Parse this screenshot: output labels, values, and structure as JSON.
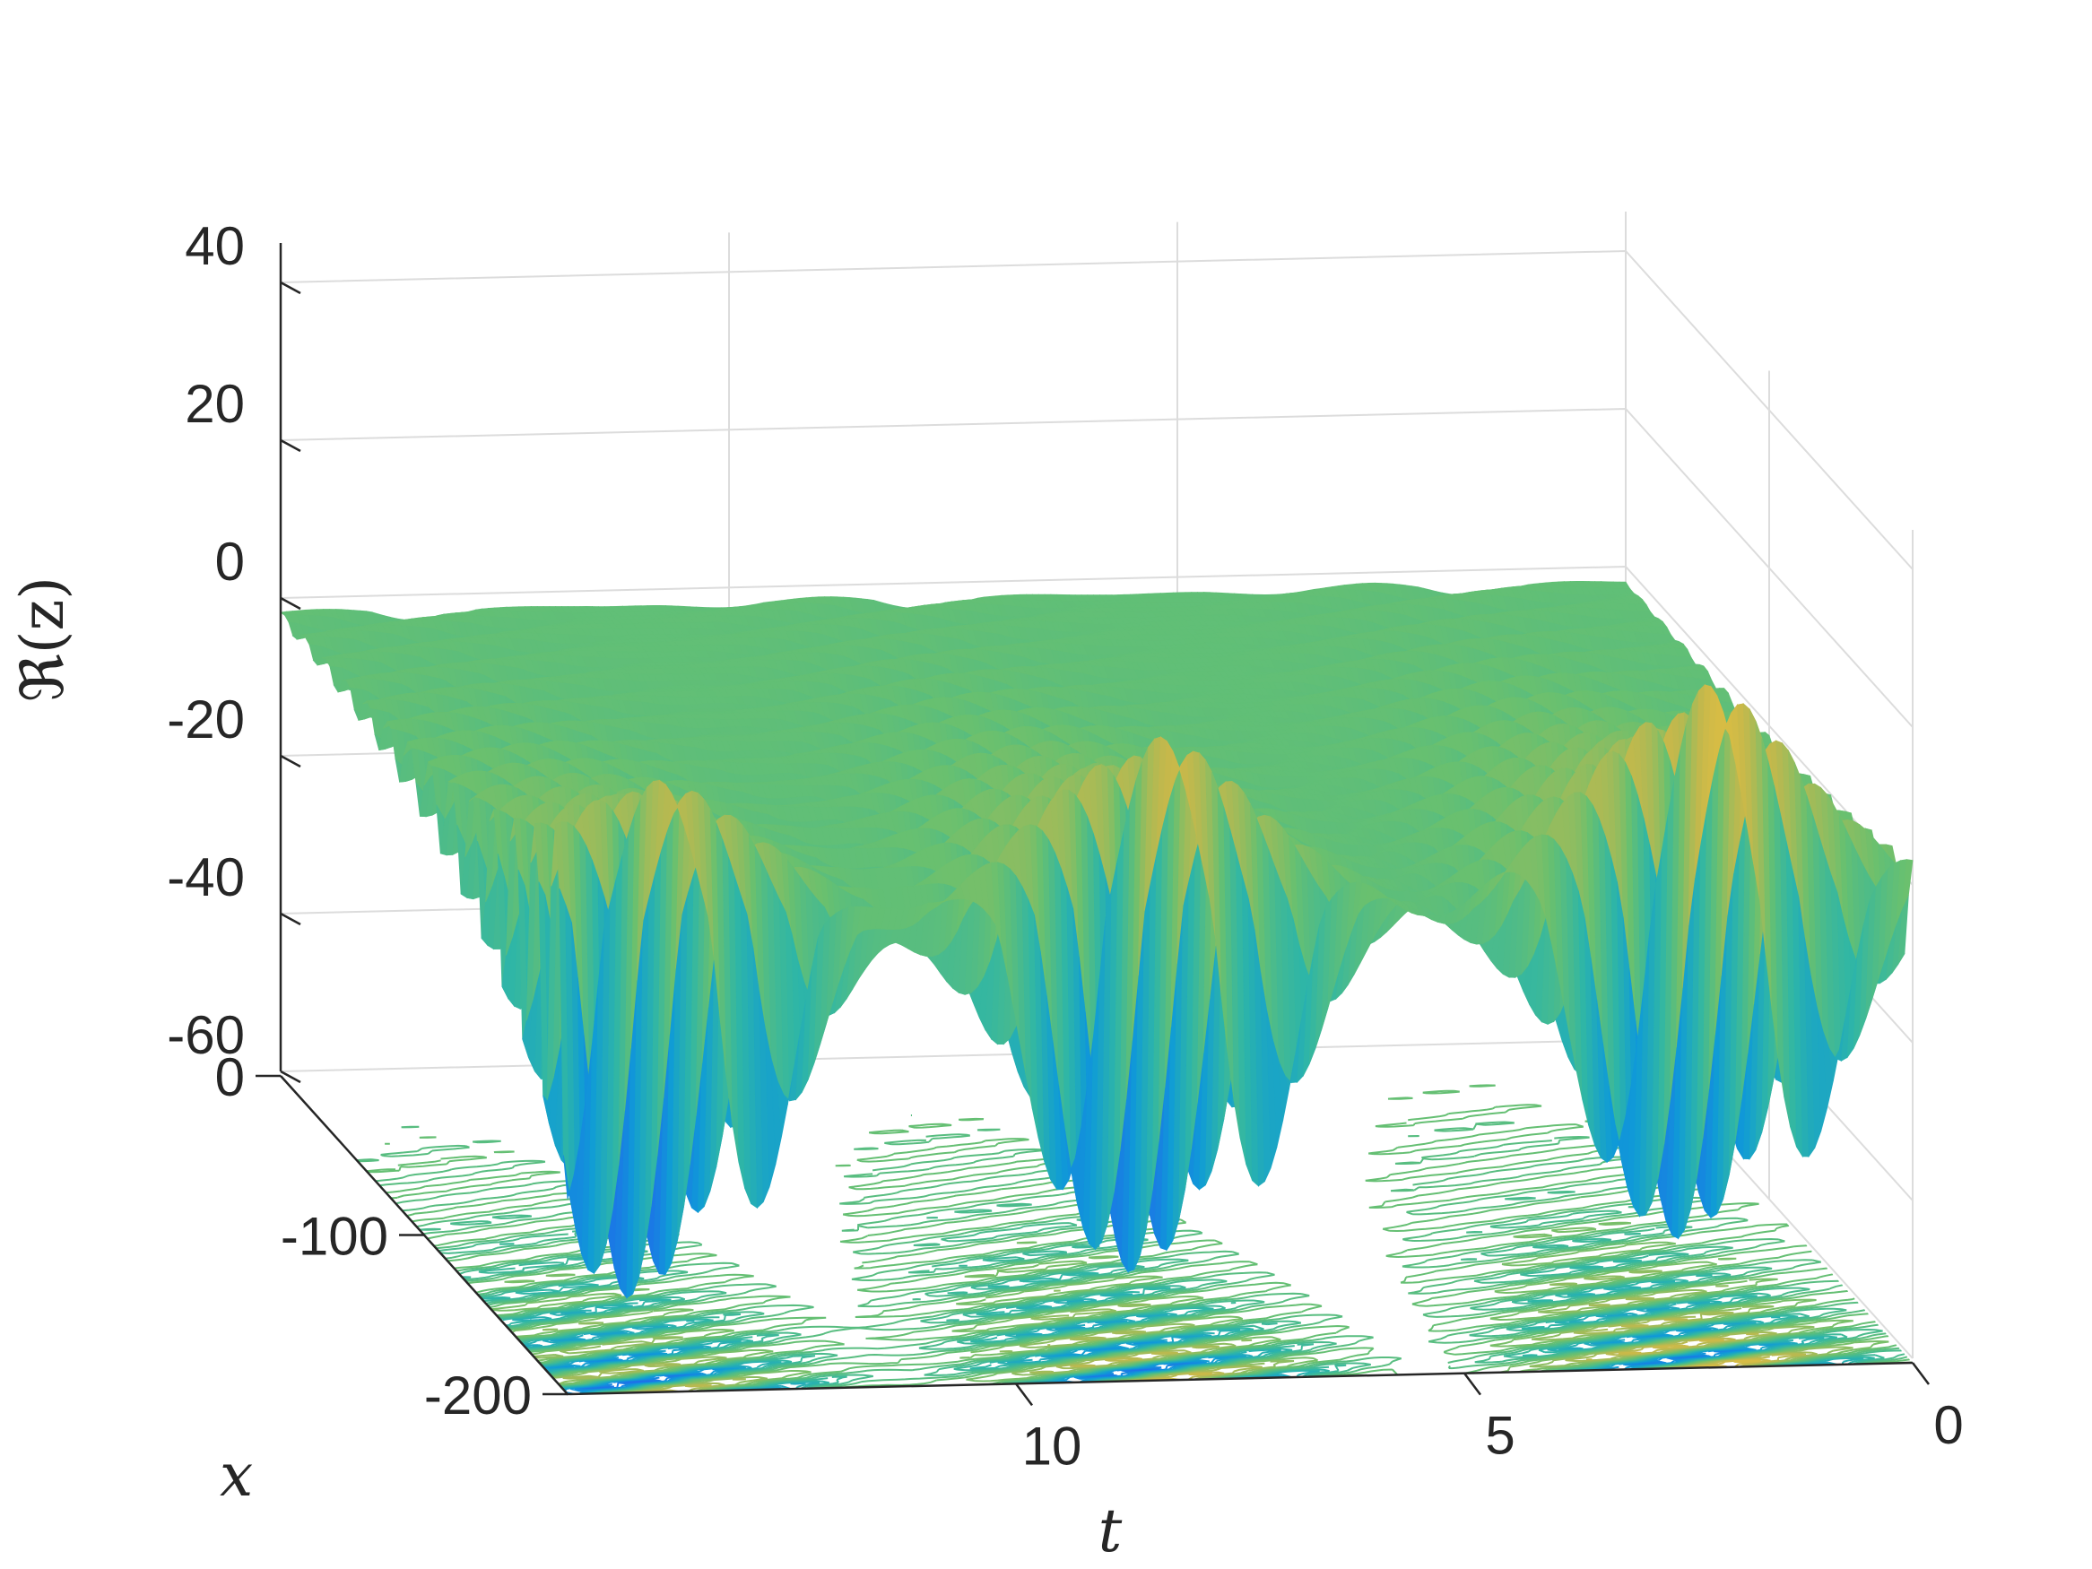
{
  "chart_data": {
    "type": "surface",
    "subtype": "3d-surface-with-contour-projection",
    "colormap": "parula",
    "colormap_stops": [
      "#3e26a8",
      "#2166ed",
      "#0f9bd7",
      "#2fb6a6",
      "#69c06f",
      "#c5b84b",
      "#fcc538",
      "#f9fb15"
    ],
    "xlabel": "t",
    "ylabel": "x",
    "zlabel": "ℜ(z)",
    "xlim": [
      0,
      15
    ],
    "ylim": [
      -200,
      0
    ],
    "zlim": [
      -60,
      45
    ],
    "x_ticks": [
      10,
      5,
      0
    ],
    "y_ticks": [
      0,
      -100,
      -200
    ],
    "z_ticks": [
      40,
      20,
      0,
      -20,
      -40,
      -60
    ],
    "grid": true,
    "contour_projection": "floor",
    "surface": {
      "baseline": -2,
      "wave_packets": [
        {
          "t_center": 14.0,
          "trough_min": -56,
          "crest_max": 17
        },
        {
          "t_center": 8.4,
          "trough_min": -54,
          "crest_max": 21
        },
        {
          "t_center": 2.3,
          "trough_min": -51,
          "crest_max": 26
        }
      ],
      "packet_shape": "dispersive wave train near x = -200, decaying to baseline toward x = 0",
      "oscillation_wavenumber": 0.18,
      "decay_length_in_x": 55
    }
  }
}
